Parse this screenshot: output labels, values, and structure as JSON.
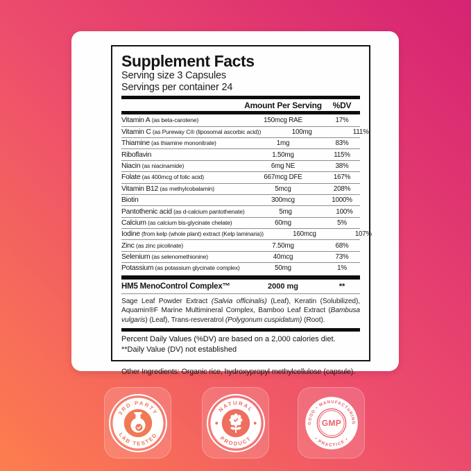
{
  "background": {
    "gradient_top_right": "#d62373",
    "gradient_middle": "#ec4b6d",
    "gradient_bottom_left": "#fd7e4e"
  },
  "label": {
    "title": "Supplement Facts",
    "serving_size": "Serving size 3 Capsules",
    "servings_per_container": "Servings per container 24",
    "columns": {
      "amount": "Amount Per Serving",
      "dv": "%DV"
    },
    "rows": [
      {
        "name": "Vitamin A",
        "detail": "(as beta-carotene)",
        "amount": "150mcg RAE",
        "dv": "17%"
      },
      {
        "name": "Vitamin C",
        "detail": "(as Pureway C® (liposomal ascorbic acid))",
        "amount": "100mg",
        "dv": "111%"
      },
      {
        "name": "Thiamine",
        "detail": "(as thiamine mononitrate)",
        "amount": "1mg",
        "dv": "83%"
      },
      {
        "name": "Riboflavin",
        "detail": "",
        "amount": "1.50mg",
        "dv": "115%"
      },
      {
        "name": "Niacin",
        "detail": "(as niacinamide)",
        "amount": "6mg NE",
        "dv": "38%"
      },
      {
        "name": "Folate",
        "detail": "(as 400mcg of folic acid)",
        "amount": "667mcg DFE",
        "dv": "167%"
      },
      {
        "name": "Vitamin B12",
        "detail": "(as methylcobalamin)",
        "amount": "5mcg",
        "dv": "208%"
      },
      {
        "name": "Biotin",
        "detail": "",
        "amount": "300mcg",
        "dv": "1000%"
      },
      {
        "name": "Pantothenic acid",
        "detail": "(as d-calcium pantothenate)",
        "amount": "5mg",
        "dv": "100%"
      },
      {
        "name": "Calcium",
        "detail": "(as calcium bis-glycinate chelate)",
        "amount": "60mg",
        "dv": "5%"
      },
      {
        "name": "Iodine",
        "detail": "(from kelp (whole plant) extract (Kelp laminaria))",
        "amount": "160mcg",
        "dv": "107%"
      },
      {
        "name": "Zinc",
        "detail": "(as zinc picolinate)",
        "amount": "7.50mg",
        "dv": "68%"
      },
      {
        "name": "Selenium",
        "detail": "(as selenomethionine)",
        "amount": "40mcg",
        "dv": "73%"
      },
      {
        "name": "Potassium",
        "detail": "(as potassium glycinate complex)",
        "amount": "50mg",
        "dv": "1%"
      }
    ],
    "complex": {
      "name": "HM5 MenoControl Complex™",
      "amount": "2000 mg",
      "dv": "**",
      "description": [
        {
          "text": "Sage Leaf Powder Extract ",
          "italic": false
        },
        {
          "text": "(Salvia officinalis)",
          "italic": true
        },
        {
          "text": " (Leaf), Keratin (Solubilized), Aquamin®F Marine Multimineral Complex, Bamboo Leaf Extract (",
          "italic": false
        },
        {
          "text": "Bambusa vulgaris",
          "italic": true
        },
        {
          "text": ") (Leaf), Trans-resveratrol ",
          "italic": false
        },
        {
          "text": "(Polygonum cuspidatum)",
          "italic": true
        },
        {
          "text": " (Root).",
          "italic": false
        }
      ]
    },
    "footnotes": [
      "Percent Daily Values (%DV) are based on a 2,000 calories diet.",
      "**Daily Value (DV) not established"
    ],
    "other_ingredients": "Other Ingredients: Organic rice, hydroxypropyl methylcellulose (capsule)."
  },
  "badges": [
    {
      "top": "3RD PARTY",
      "bottom": "LAB TESTED",
      "icon": "flask-check-icon",
      "accent": "#f07a56"
    },
    {
      "top": "NATURAL",
      "bottom": "PRODUCT",
      "icon": "flower-check-icon",
      "accent": "#ee6e60"
    },
    {
      "top": "GOOD • MANUFACTURING",
      "bottom": "• PRACTICE •",
      "center": "GMP",
      "icon": "gmp-seal-icon",
      "accent": "#e9606b"
    }
  ]
}
